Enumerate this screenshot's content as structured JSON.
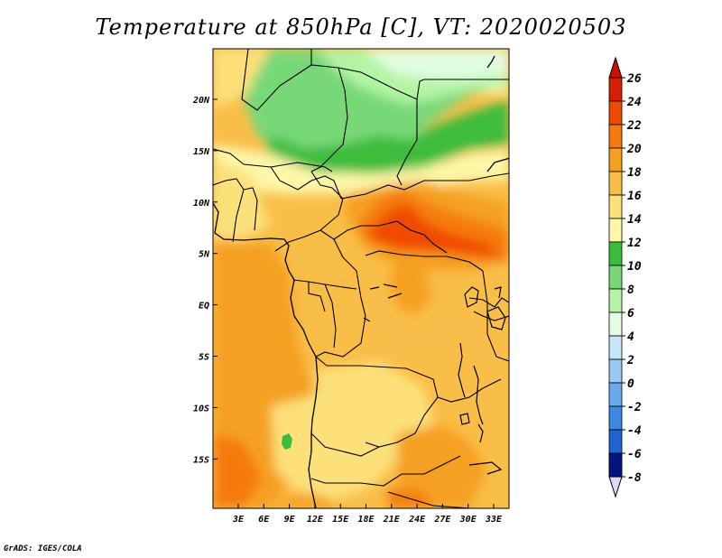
{
  "title": "Temperature at 850hPa [C], VT: 2020020503",
  "footer": "GrADS: IGES/COLA",
  "map": {
    "lat_labels": [
      "20N",
      "15N",
      "10N",
      "5N",
      "EQ",
      "5S",
      "10S",
      "15S"
    ],
    "lon_labels": [
      "3E",
      "6E",
      "9E",
      "12E",
      "15E",
      "18E",
      "21E",
      "24E",
      "27E",
      "30E",
      "33E"
    ]
  },
  "colorbar": {
    "levels": [
      "26",
      "24",
      "22",
      "20",
      "18",
      "16",
      "14",
      "12",
      "10",
      "8",
      "6",
      "4",
      "2",
      "0",
      "-2",
      "-4",
      "-6",
      "-8"
    ],
    "colors": [
      "#d81e00",
      "#f04a00",
      "#f57a10",
      "#f5a020",
      "#f9be48",
      "#fce07a",
      "#fdf7a8",
      "#3cbc3c",
      "#78d878",
      "#b4f4a4",
      "#e2fde2",
      "#c6e6fa",
      "#9ac8f2",
      "#6aaaec",
      "#3a8ae2",
      "#1e64d2",
      "#0a3ab4",
      "#04147e"
    ],
    "top_color": "#c81200",
    "bottom_color": "#d8daf6"
  }
}
